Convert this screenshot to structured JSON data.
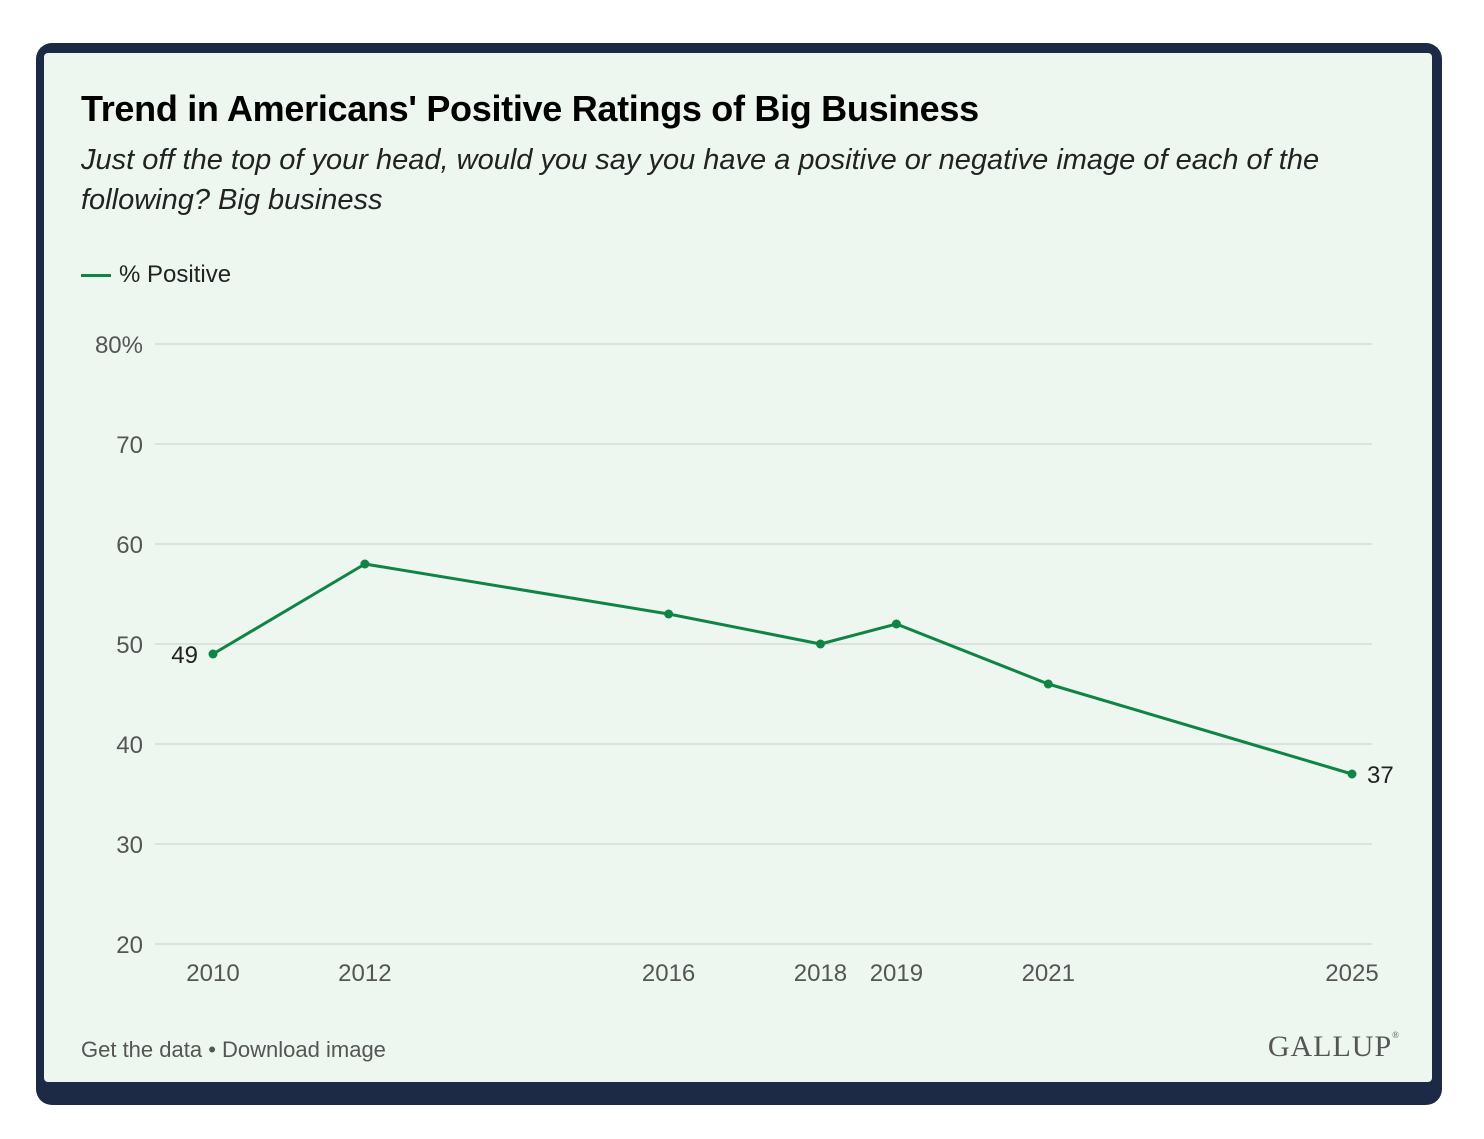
{
  "header": {
    "title": "Trend in Americans' Positive Ratings of Big Business",
    "subtitle": "Just off the top of your head, would you say you have a positive or negative image of each of the following? Big business"
  },
  "footer": {
    "get_data": "Get the data",
    "separator": "•",
    "download": "Download image"
  },
  "brand": {
    "logo_text": "GALLUP",
    "logo_mark": "®"
  },
  "colors": {
    "line": "#0f8445",
    "grid": "#d4dcd6",
    "axis_text": "#555555",
    "label_text": "#222222"
  },
  "chart_data": {
    "type": "line",
    "title": "Trend in Americans' Positive Ratings of Big Business",
    "xlabel": "",
    "ylabel": "",
    "x": [
      2010,
      2012,
      2016,
      2018,
      2019,
      2021,
      2025
    ],
    "xtick_labels": [
      "2010",
      "2012",
      "2016",
      "2018",
      "2019",
      "2021",
      "2025"
    ],
    "series": [
      {
        "name": "% Positive",
        "values": [
          49,
          58,
          53,
          50,
          52,
          46,
          37
        ]
      }
    ],
    "ylim": [
      20,
      80
    ],
    "yticks": [
      20,
      30,
      40,
      50,
      60,
      70,
      80
    ],
    "ytick_labels": [
      "20",
      "30",
      "40",
      "50",
      "60",
      "70",
      "80%"
    ],
    "data_labels": [
      {
        "x": 2010,
        "value": 49,
        "text": "49"
      },
      {
        "x": 2025,
        "value": 37,
        "text": "37"
      }
    ],
    "grid": true,
    "legend": "top-left"
  }
}
